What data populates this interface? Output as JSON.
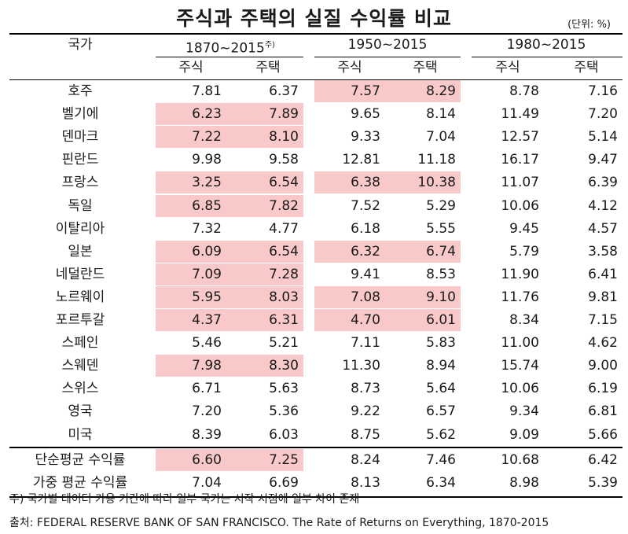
{
  "title": "주식과 주택의 실질 수익률 비교",
  "unit": "(단위: %)",
  "header": {
    "country": "국가",
    "periods": [
      "1870~2015",
      "1950~2015",
      "1980~2015"
    ],
    "period1_sup": "주)",
    "stock": "주식",
    "house": "주택"
  },
  "rows": [
    {
      "country": "호주",
      "v": [
        "7.81",
        "6.37",
        "7.57",
        "8.29",
        "8.78",
        "7.16"
      ],
      "hl": [
        false,
        true,
        false
      ]
    },
    {
      "country": "벨기에",
      "v": [
        "6.23",
        "7.89",
        "9.65",
        "8.14",
        "11.49",
        "7.20"
      ],
      "hl": [
        true,
        false,
        false
      ]
    },
    {
      "country": "덴마크",
      "v": [
        "7.22",
        "8.10",
        "9.33",
        "7.04",
        "12.57",
        "5.14"
      ],
      "hl": [
        true,
        false,
        false
      ]
    },
    {
      "country": "핀란드",
      "v": [
        "9.98",
        "9.58",
        "12.81",
        "11.18",
        "16.17",
        "9.47"
      ],
      "hl": [
        false,
        false,
        false
      ]
    },
    {
      "country": "프랑스",
      "v": [
        "3.25",
        "6.54",
        "6.38",
        "10.38",
        "11.07",
        "6.39"
      ],
      "hl": [
        true,
        true,
        false
      ]
    },
    {
      "country": "독일",
      "v": [
        "6.85",
        "7.82",
        "7.52",
        "5.29",
        "10.06",
        "4.12"
      ],
      "hl": [
        true,
        false,
        false
      ]
    },
    {
      "country": "이탈리아",
      "v": [
        "7.32",
        "4.77",
        "6.18",
        "5.55",
        "9.45",
        "4.57"
      ],
      "hl": [
        false,
        false,
        false
      ]
    },
    {
      "country": "일본",
      "v": [
        "6.09",
        "6.54",
        "6.32",
        "6.74",
        "5.79",
        "3.58"
      ],
      "hl": [
        true,
        true,
        false
      ]
    },
    {
      "country": "네덜란드",
      "v": [
        "7.09",
        "7.28",
        "9.41",
        "8.53",
        "11.90",
        "6.41"
      ],
      "hl": [
        true,
        false,
        false
      ]
    },
    {
      "country": "노르웨이",
      "v": [
        "5.95",
        "8.03",
        "7.08",
        "9.10",
        "11.76",
        "9.81"
      ],
      "hl": [
        true,
        true,
        false
      ]
    },
    {
      "country": "포르투갈",
      "v": [
        "4.37",
        "6.31",
        "4.70",
        "6.01",
        "8.34",
        "7.15"
      ],
      "hl": [
        true,
        true,
        false
      ]
    },
    {
      "country": "스페인",
      "v": [
        "5.46",
        "5.21",
        "7.11",
        "5.83",
        "11.00",
        "4.62"
      ],
      "hl": [
        false,
        false,
        false
      ]
    },
    {
      "country": "스웨덴",
      "v": [
        "7.98",
        "8.30",
        "11.30",
        "8.94",
        "15.74",
        "9.00"
      ],
      "hl": [
        true,
        false,
        false
      ]
    },
    {
      "country": "스위스",
      "v": [
        "6.71",
        "5.63",
        "8.73",
        "5.64",
        "10.06",
        "6.19"
      ],
      "hl": [
        false,
        false,
        false
      ]
    },
    {
      "country": "영국",
      "v": [
        "7.20",
        "5.36",
        "9.22",
        "6.57",
        "9.34",
        "6.81"
      ],
      "hl": [
        false,
        false,
        false
      ]
    },
    {
      "country": "미국",
      "v": [
        "8.39",
        "6.03",
        "8.75",
        "5.62",
        "9.09",
        "5.66"
      ],
      "hl": [
        false,
        false,
        false
      ]
    }
  ],
  "summary": [
    {
      "country": "단순평균 수익률",
      "v": [
        "6.60",
        "7.25",
        "8.24",
        "7.46",
        "10.68",
        "6.42"
      ],
      "hl": [
        true,
        false,
        false
      ]
    },
    {
      "country": "가중 평균 수익률",
      "v": [
        "7.04",
        "6.69",
        "8.13",
        "6.34",
        "8.98",
        "5.39"
      ],
      "hl": [
        false,
        false,
        false
      ]
    }
  ],
  "note": "주) 국가별 데이터 가용 기간에 따라 일부 국가는 시작 시점에 일부 차이 존재",
  "source": "출처: FEDERAL RESERVE BANK OF SAN FRANCISCO. The Rate of Returns on Everything, 1870-2015",
  "colors": {
    "highlight": "#f9c9c9",
    "rule": "#000000"
  }
}
